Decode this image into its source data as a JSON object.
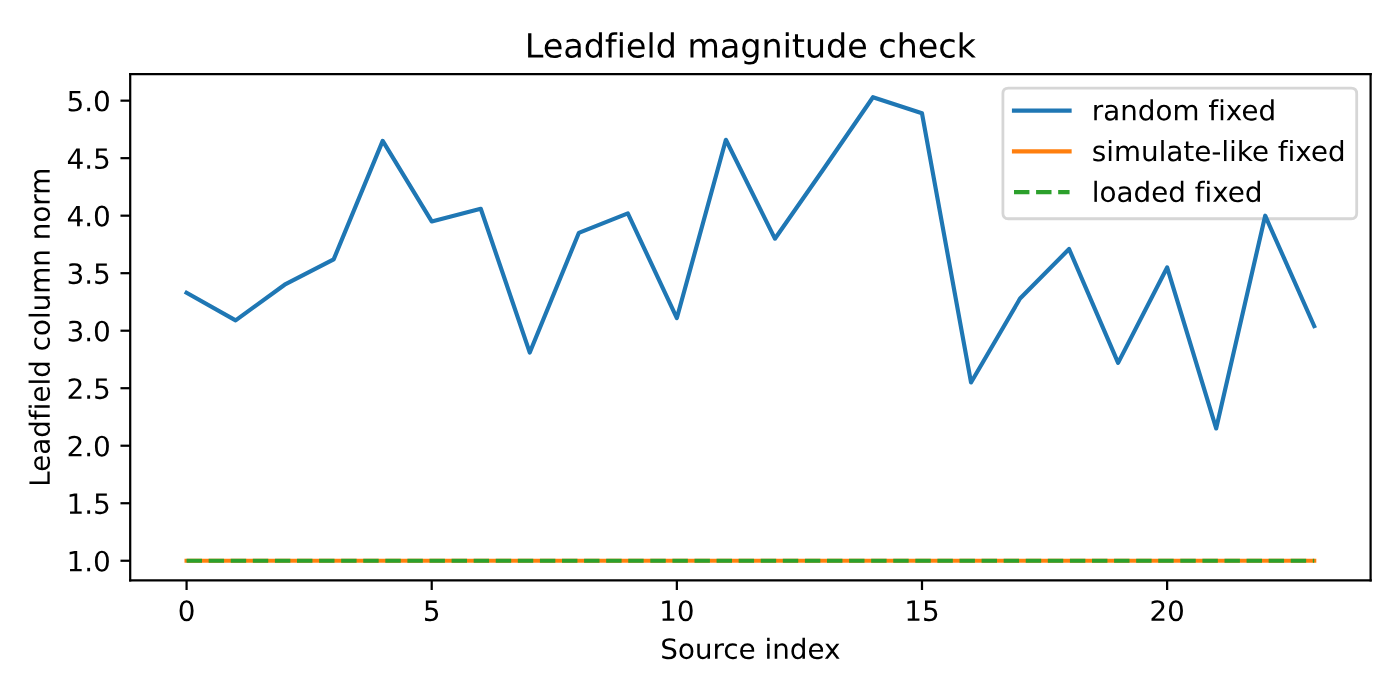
{
  "chart_data": {
    "type": "line",
    "title": "Leadfield magnitude check",
    "xlabel": "Source index",
    "ylabel": "Leadfield column norm",
    "x": [
      0,
      1,
      2,
      3,
      4,
      5,
      6,
      7,
      8,
      9,
      10,
      11,
      12,
      13,
      14,
      15,
      16,
      17,
      18,
      19,
      20,
      21,
      22,
      23
    ],
    "series": [
      {
        "name": "random fixed",
        "color": "#1f77b4",
        "line_style": "solid",
        "values": [
          3.33,
          3.09,
          3.4,
          3.62,
          4.65,
          3.95,
          4.06,
          2.81,
          3.85,
          4.02,
          3.11,
          4.66,
          3.8,
          4.41,
          5.03,
          4.89,
          2.55,
          3.28,
          3.71,
          2.72,
          3.55,
          2.15,
          4.0,
          3.04
        ]
      },
      {
        "name": "simulate-like fixed",
        "color": "#ff7f0e",
        "line_style": "solid",
        "values": [
          1,
          1,
          1,
          1,
          1,
          1,
          1,
          1,
          1,
          1,
          1,
          1,
          1,
          1,
          1,
          1,
          1,
          1,
          1,
          1,
          1,
          1,
          1,
          1
        ]
      },
      {
        "name": "loaded fixed",
        "color": "#2ca02c",
        "line_style": "dashed",
        "values": [
          1,
          1,
          1,
          1,
          1,
          1,
          1,
          1,
          1,
          1,
          1,
          1,
          1,
          1,
          1,
          1,
          1,
          1,
          1,
          1,
          1,
          1,
          1,
          1
        ]
      }
    ],
    "xlim": [
      -1.15,
      24.15
    ],
    "ylim": [
      0.83,
      5.23
    ],
    "xticks": [
      0,
      5,
      10,
      15,
      20
    ],
    "yticks": [
      {
        "value": 1,
        "label": "1.0"
      },
      {
        "value": 1.5,
        "label": "1.5"
      },
      {
        "value": 2,
        "label": "2.0"
      },
      {
        "value": 2.5,
        "label": "2.5"
      },
      {
        "value": 3,
        "label": "3.0"
      },
      {
        "value": 3.5,
        "label": "3.5"
      },
      {
        "value": 4,
        "label": "4.0"
      },
      {
        "value": 4.5,
        "label": "4.5"
      },
      {
        "value": 5,
        "label": "5.0"
      }
    ],
    "legend": "top right",
    "grid": false
  }
}
